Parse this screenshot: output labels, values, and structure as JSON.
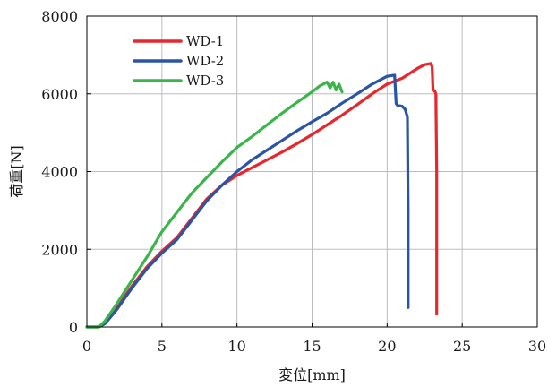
{
  "chart_data": {
    "type": "line",
    "xlabel": "変位[mm]",
    "ylabel": "荷重[N]",
    "xlim": [
      0,
      30
    ],
    "ylim": [
      0,
      8000
    ],
    "xticks": [
      0,
      5,
      10,
      15,
      20,
      25,
      30
    ],
    "yticks": [
      0,
      2000,
      4000,
      6000,
      8000
    ],
    "grid": true,
    "legend_position": "top-left",
    "series": [
      {
        "name": "WD-1",
        "color": "#e8262c",
        "x": [
          0,
          0.8,
          1.2,
          2,
          3,
          4,
          5,
          6,
          7,
          8,
          9,
          10,
          11,
          12,
          13,
          14,
          15,
          16,
          17,
          18,
          19,
          20,
          21,
          22,
          22.5,
          22.9,
          23.0,
          23.05,
          23.2,
          23.25,
          23.3,
          23.3
        ],
        "y": [
          0,
          0,
          100,
          500,
          1050,
          1550,
          1950,
          2300,
          2800,
          3300,
          3650,
          3900,
          4100,
          4300,
          4500,
          4720,
          4950,
          5200,
          5450,
          5720,
          6000,
          6250,
          6400,
          6650,
          6750,
          6780,
          6700,
          6120,
          6050,
          5980,
          4000,
          330
        ]
      },
      {
        "name": "WD-2",
        "color": "#2a55a5",
        "x": [
          0,
          0.8,
          1.2,
          2,
          3,
          4,
          5,
          6,
          7,
          8,
          9,
          10,
          11,
          12,
          13,
          14,
          15,
          16,
          17,
          18,
          19,
          20,
          20.5,
          20.6,
          20.7,
          21.0,
          21.2,
          21.35,
          21.4,
          21.4
        ],
        "y": [
          0,
          0,
          80,
          450,
          1000,
          1500,
          1900,
          2250,
          2750,
          3250,
          3650,
          4000,
          4300,
          4550,
          4800,
          5050,
          5280,
          5500,
          5760,
          6000,
          6250,
          6450,
          6480,
          5750,
          5700,
          5680,
          5600,
          5400,
          3000,
          500
        ]
      },
      {
        "name": "WD-3",
        "color": "#3ab54a",
        "x": [
          0,
          0.8,
          1.2,
          2,
          3,
          4,
          5,
          6,
          7,
          8,
          9,
          10,
          11,
          12,
          13,
          14,
          15,
          15.5,
          16,
          16.2,
          16.4,
          16.6,
          16.8,
          17.0
        ],
        "y": [
          0,
          0,
          150,
          600,
          1200,
          1800,
          2450,
          2950,
          3450,
          3850,
          4250,
          4620,
          4900,
          5200,
          5500,
          5780,
          6050,
          6200,
          6300,
          6150,
          6300,
          6100,
          6250,
          6050
        ]
      }
    ]
  }
}
